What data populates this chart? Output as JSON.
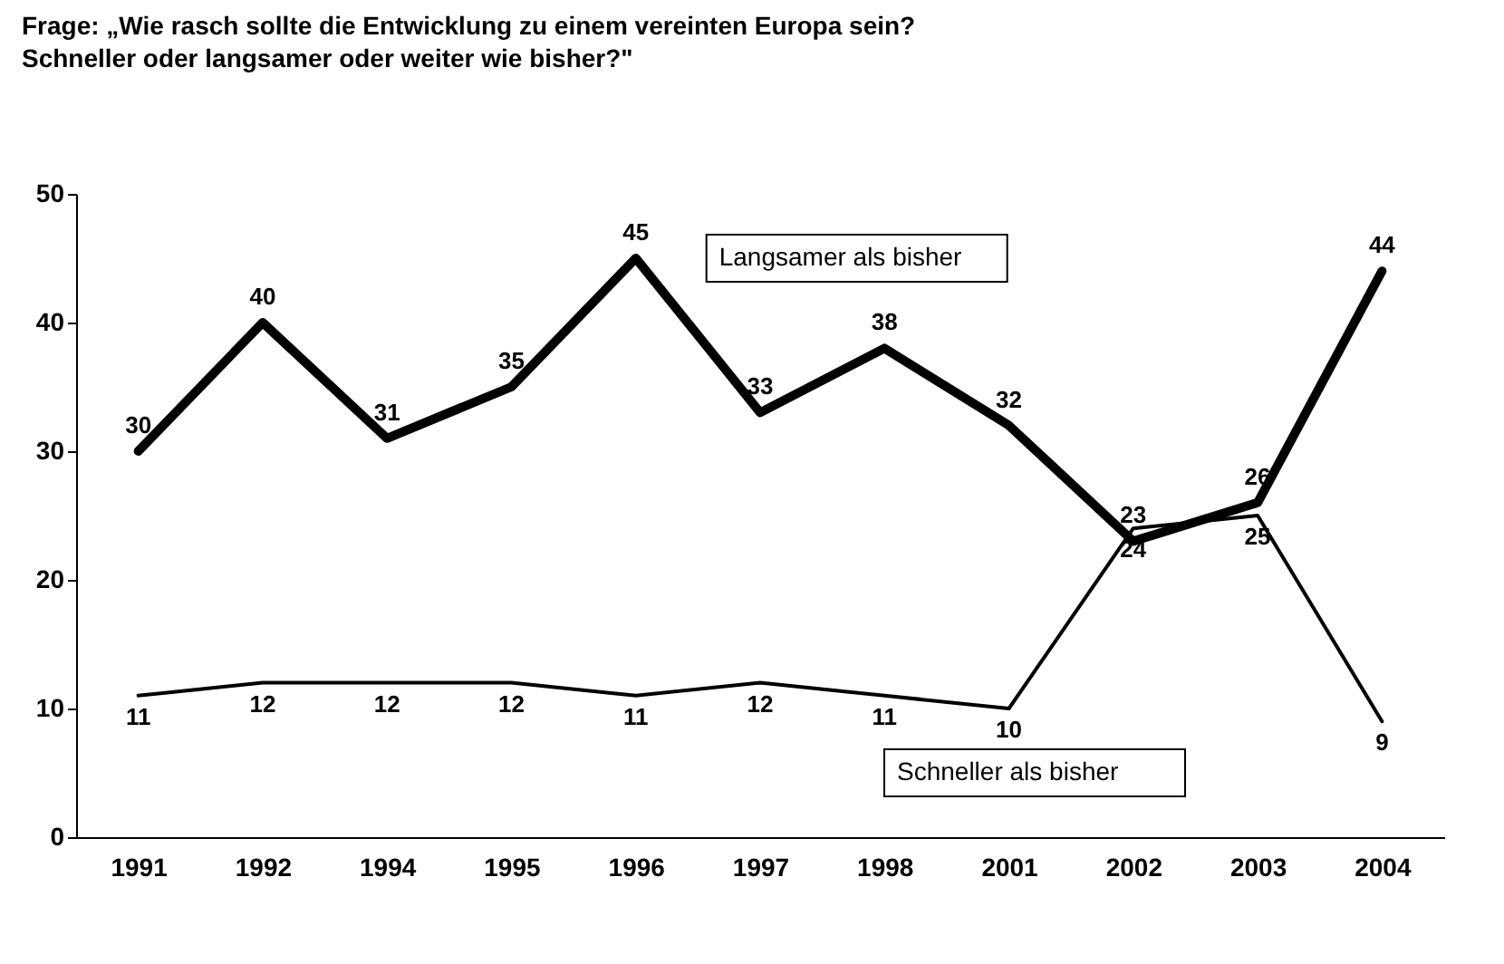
{
  "chart_data": {
    "type": "line",
    "title": "Frage: „Wie rasch sollte die Entwicklung zu einem vereinten Europa sein?",
    "subtitle": "Schneller oder langsamer oder weiter wie bisher?\"",
    "categories": [
      "1991",
      "1992",
      "1994",
      "1995",
      "1996",
      "1997",
      "1998",
      "2001",
      "2002",
      "2003",
      "2004"
    ],
    "series": [
      {
        "name": "Langsamer als bisher",
        "color": "#000000",
        "values": [
          30,
          40,
          31,
          35,
          45,
          33,
          38,
          32,
          23,
          26,
          44
        ]
      },
      {
        "name": "Schneller als bisher",
        "color": "#000000",
        "values": [
          11,
          12,
          12,
          12,
          11,
          12,
          11,
          10,
          24,
          25,
          9
        ]
      }
    ],
    "ylim": [
      0,
      50
    ],
    "yticks": [
      0,
      10,
      20,
      30,
      40,
      50
    ],
    "grid": false,
    "data_labels": true,
    "line_style": "solid",
    "marker": "none"
  }
}
